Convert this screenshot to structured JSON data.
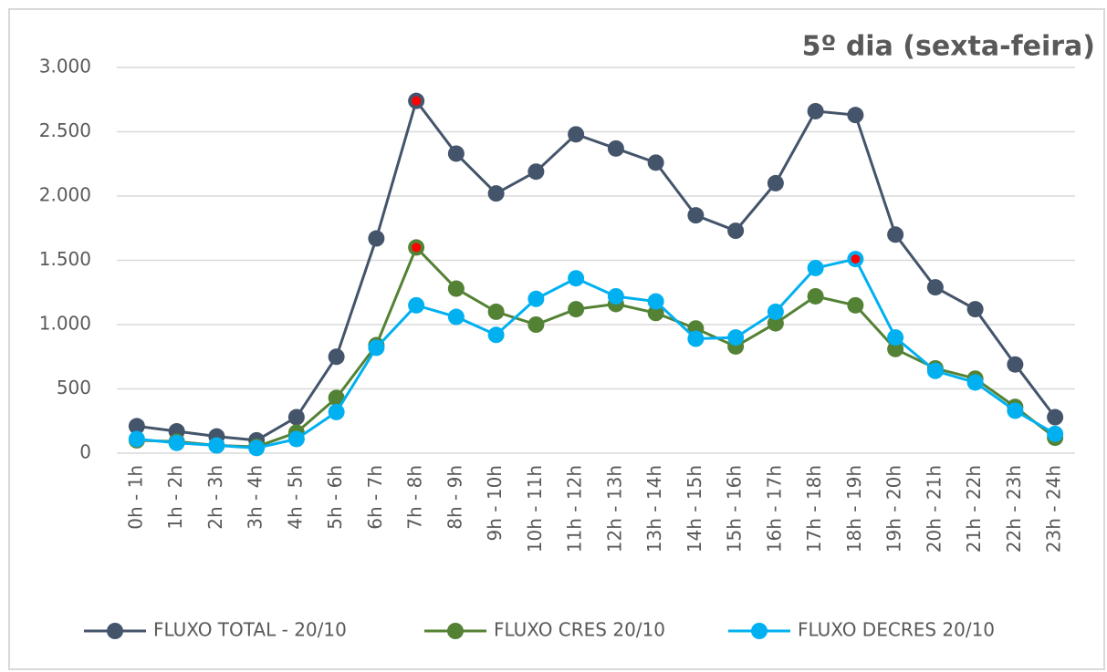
{
  "chart_data": {
    "type": "line",
    "title": "5º dia (sexta-feira)",
    "categories": [
      "0h - 1h",
      "1h - 2h",
      "2h - 3h",
      "3h - 4h",
      "4h - 5h",
      "5h - 6h",
      "6h - 7h",
      "7h - 8h",
      "8h - 9h",
      "9h - 10h",
      "10h - 11h",
      "11h - 12h",
      "12h - 13h",
      "13h - 14h",
      "14h - 15h",
      "15h - 16h",
      "16h - 17h",
      "17h - 18h",
      "18h - 19h",
      "19h - 20h",
      "20h - 21h",
      "21h - 22h",
      "22h - 23h",
      "23h - 24h"
    ],
    "series": [
      {
        "name": "FLUXO TOTAL - 20/10",
        "color": "#44546a",
        "highlight": 7,
        "highlight_color": "#ff0000",
        "values": [
          210,
          170,
          130,
          100,
          280,
          750,
          1670,
          2740,
          2330,
          2020,
          2190,
          2480,
          2370,
          2260,
          1850,
          1730,
          2100,
          2660,
          2630,
          1700,
          1290,
          1120,
          690,
          280
        ]
      },
      {
        "name": "FLUXO CRES 20/10",
        "color": "#548235",
        "highlight": 7,
        "highlight_color": "#ff0000",
        "values": [
          100,
          90,
          60,
          50,
          160,
          430,
          840,
          1600,
          1280,
          1100,
          1000,
          1120,
          1160,
          1090,
          970,
          830,
          1010,
          1220,
          1150,
          810,
          660,
          580,
          360,
          120
        ]
      },
      {
        "name": "FLUXO DECRES 20/10",
        "color": "#00b0f0",
        "highlight": 18,
        "highlight_color": "#ff0000",
        "values": [
          110,
          80,
          60,
          40,
          110,
          320,
          820,
          1150,
          1060,
          920,
          1200,
          1360,
          1220,
          1180,
          890,
          900,
          1100,
          1440,
          1510,
          900,
          640,
          550,
          330,
          150
        ]
      }
    ],
    "ylim": [
      0,
      3000
    ],
    "yticks": [
      0,
      500,
      {
        "value": 1000,
        "label": "1.000"
      },
      {
        "value": 1500,
        "label": "1.500"
      },
      {
        "value": 2000,
        "label": "2.000"
      },
      {
        "value": 2500,
        "label": "2.500"
      },
      {
        "value": 3000,
        "label": "3.000"
      }
    ],
    "grid": true,
    "legend": "bottom"
  }
}
